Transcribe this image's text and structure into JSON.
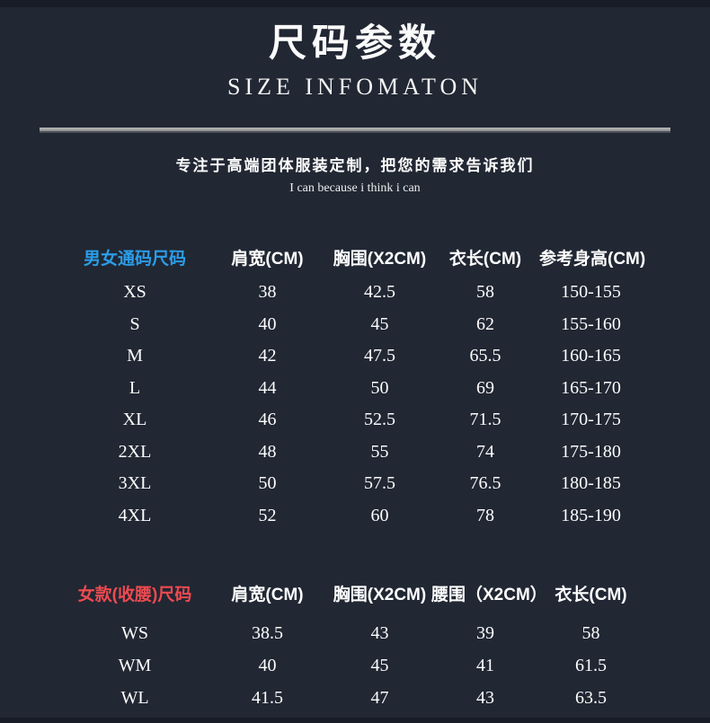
{
  "page": {
    "title_cn": "尺码参数",
    "title_en": "SIZE INFOMATON",
    "slogan_cn": "专注于高端团体服装定制，把您的需求告诉我们",
    "slogan_en": "I can because i think i can"
  },
  "colors": {
    "background": "#212733",
    "unisex_label": "#2b9de8",
    "women_label": "#ee4a50",
    "divider": "#a8a8a8",
    "text": "#ffffff"
  },
  "unisex_table": {
    "label": "男女通码尺码",
    "columns": [
      "肩宽(CM)",
      "胸围(X2CM)",
      "衣长(CM)",
      "参考身高(CM)"
    ],
    "rows": [
      {
        "size": "XS",
        "shoulder": "38",
        "chest": "42.5",
        "length": "58",
        "height": "150-155"
      },
      {
        "size": "S",
        "shoulder": "40",
        "chest": "45",
        "length": "62",
        "height": "155-160"
      },
      {
        "size": "M",
        "shoulder": "42",
        "chest": "47.5",
        "length": "65.5",
        "height": "160-165"
      },
      {
        "size": "L",
        "shoulder": "44",
        "chest": "50",
        "length": "69",
        "height": "165-170"
      },
      {
        "size": "XL",
        "shoulder": "46",
        "chest": "52.5",
        "length": "71.5",
        "height": "170-175"
      },
      {
        "size": "2XL",
        "shoulder": "48",
        "chest": "55",
        "length": "74",
        "height": "175-180"
      },
      {
        "size": "3XL",
        "shoulder": "50",
        "chest": "57.5",
        "length": "76.5",
        "height": "180-185"
      },
      {
        "size": "4XL",
        "shoulder": "52",
        "chest": "60",
        "length": "78",
        "height": "185-190"
      }
    ]
  },
  "women_table": {
    "label": "女款(收腰)尺码",
    "columns": [
      "肩宽(CM)",
      "胸围(X2CM)",
      "腰围（X2CM）",
      "衣长(CM)"
    ],
    "rows": [
      {
        "size": "WS",
        "shoulder": "38.5",
        "chest": "43",
        "waist": "39",
        "length": "58"
      },
      {
        "size": "WM",
        "shoulder": "40",
        "chest": "45",
        "waist": "41",
        "length": "61.5"
      },
      {
        "size": "WL",
        "shoulder": "41.5",
        "chest": "47",
        "waist": "43",
        "length": "63.5"
      }
    ]
  }
}
